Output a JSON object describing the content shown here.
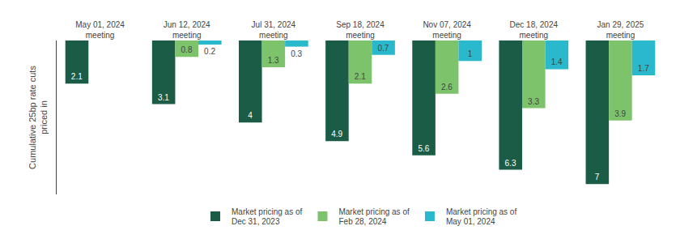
{
  "chart_data": {
    "type": "bar",
    "categories": [
      "May 01, 2024\nmeeting",
      "Jun 12, 2024\nmeeting",
      "Jul 31, 2024\nmeeting",
      "Sep 18, 2024\nmeeting",
      "Nov 07, 2024\nmeeting",
      "Dec 18, 2024\nmeeting",
      "Jan 29, 2025\nmeeting"
    ],
    "series": [
      {
        "name": "Market pricing as of\nDec 31, 2023",
        "color": "#1a5c45",
        "values": [
          2.1,
          3.1,
          4.0,
          4.9,
          5.6,
          6.3,
          7.0
        ]
      },
      {
        "name": "Market pricing as of\nFeb 28, 2024",
        "color": "#7dc36b",
        "values": [
          0.0,
          0.8,
          1.3,
          2.1,
          2.6,
          3.3,
          3.9
        ],
        "value_labels": [
          null,
          "0.8",
          "1.3",
          "2.1",
          "2.6",
          "3.3",
          "3.9"
        ]
      },
      {
        "name": "Market pricing as of\nMay 01, 2024",
        "color": "#2ab8cc",
        "values": [
          0.0,
          0.2,
          0.3,
          0.7,
          1.0,
          1.4,
          1.7
        ]
      }
    ],
    "y_label": "Cumulative 25bp rate cuts\npriced in",
    "ylim": [
      7.5,
      0
    ],
    "tick_labels": "x",
    "grid": false,
    "legend": "bottom",
    "data_labels": true
  }
}
